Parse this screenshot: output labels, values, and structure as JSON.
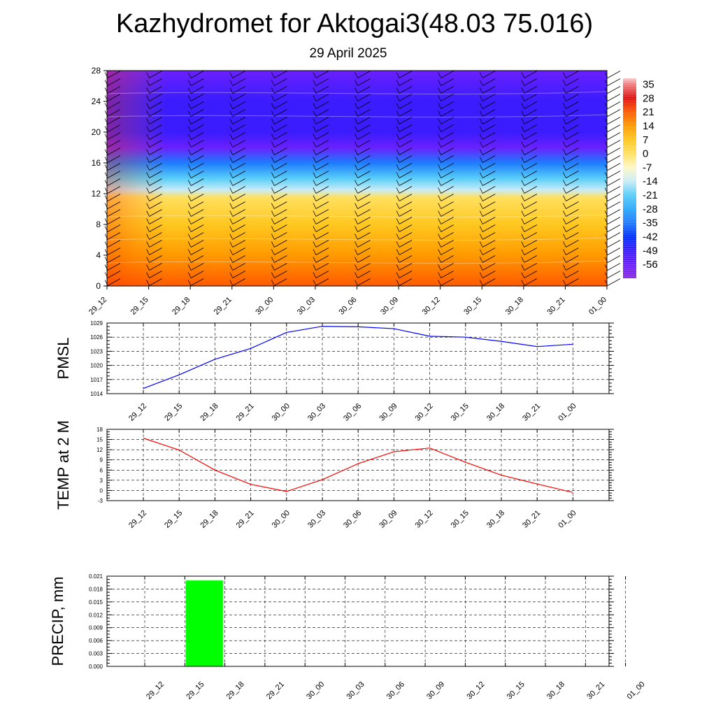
{
  "title": "Kazhydromet for Aktogai3(48.03 75.016)",
  "subtitle": "29 April 2025",
  "time_labels": [
    "29_12",
    "29_15",
    "29_18",
    "29_21",
    "30_00",
    "30_03",
    "30_06",
    "30_09",
    "30_12",
    "30_15",
    "30_18",
    "30_21",
    "01_00"
  ],
  "chart_data": [
    {
      "type": "heatmap",
      "name_hint": "cross-section",
      "x": [
        "29_12",
        "29_15",
        "29_18",
        "29_21",
        "30_00",
        "30_03",
        "30_06",
        "30_09",
        "30_12",
        "30_15",
        "30_18",
        "30_21",
        "01_00"
      ],
      "y_ticks": [
        0,
        4,
        8,
        12,
        16,
        20,
        24,
        28
      ],
      "ylim": [
        0,
        28
      ],
      "colorbar_labels": [
        "35",
        "28",
        "21",
        "14",
        "7",
        "0",
        "-7",
        "-14",
        "-21",
        "-28",
        "-35",
        "-42",
        "-49",
        "-56"
      ],
      "colorbar_range": [
        -63,
        38
      ],
      "temperature_profile_approx": [
        {
          "level": 0,
          "value": 15
        },
        {
          "level": 4,
          "value": 10
        },
        {
          "level": 8,
          "value": 5
        },
        {
          "level": 11.5,
          "value": 0
        },
        {
          "level": 12.5,
          "value": -14
        },
        {
          "level": 14,
          "value": -21
        },
        {
          "level": 16,
          "value": -35
        },
        {
          "level": 18,
          "value": -56
        },
        {
          "level": 20,
          "value": -49
        },
        {
          "level": 24,
          "value": -49
        },
        {
          "level": 28,
          "value": -56
        }
      ],
      "grid": false
    },
    {
      "type": "line",
      "ylabel": "PMSL",
      "x": [
        "29_12",
        "29_15",
        "29_18",
        "29_21",
        "30_00",
        "30_03",
        "30_06",
        "30_09",
        "30_12",
        "30_15",
        "30_18",
        "30_21",
        "01_00"
      ],
      "series": [
        {
          "values": [
            1015.1,
            1018.0,
            1021.3,
            1023.6,
            1027.0,
            1028.3,
            1028.2,
            1027.8,
            1026.2,
            1026.0,
            1025.1,
            1024.0,
            1024.5
          ],
          "color": "#0000ff"
        }
      ],
      "y_ticks": [
        1014,
        1017,
        1020,
        1023,
        1026,
        1029
      ],
      "ylim": [
        1014,
        1029
      ],
      "grid": true
    },
    {
      "type": "line",
      "ylabel": "TEMP at 2 M",
      "x": [
        "29_12",
        "29_15",
        "29_18",
        "29_21",
        "30_00",
        "30_03",
        "30_06",
        "30_09",
        "30_12",
        "30_15",
        "30_18",
        "30_21",
        "01_00"
      ],
      "series": [
        {
          "values": [
            15.4,
            11.9,
            6.0,
            1.8,
            -0.3,
            3.2,
            7.9,
            11.4,
            12.5,
            8.3,
            4.5,
            1.9,
            -0.6
          ],
          "color": "#ff0000"
        }
      ],
      "y_ticks": [
        -3,
        0,
        3,
        6,
        9,
        12,
        15,
        18
      ],
      "ylim": [
        -3,
        18
      ],
      "grid": true
    },
    {
      "type": "bar",
      "ylabel": "PRECIP, mm",
      "categories": [
        "29_12",
        "29_15",
        "29_18",
        "29_21",
        "30_00",
        "30_03",
        "30_06",
        "30_09",
        "30_12",
        "30_15",
        "30_18",
        "30_21",
        "01_00"
      ],
      "values": [
        0,
        0.02,
        0,
        0,
        0,
        0,
        0,
        0,
        0,
        0,
        0,
        0,
        0
      ],
      "bar_color": "#00ff00",
      "y_ticks": [
        "0.000",
        "0.003",
        "0.006",
        "0.009",
        "0.012",
        "0.015",
        "0.018",
        "0.021"
      ],
      "ylim": [
        0,
        0.021
      ],
      "grid": true
    }
  ]
}
